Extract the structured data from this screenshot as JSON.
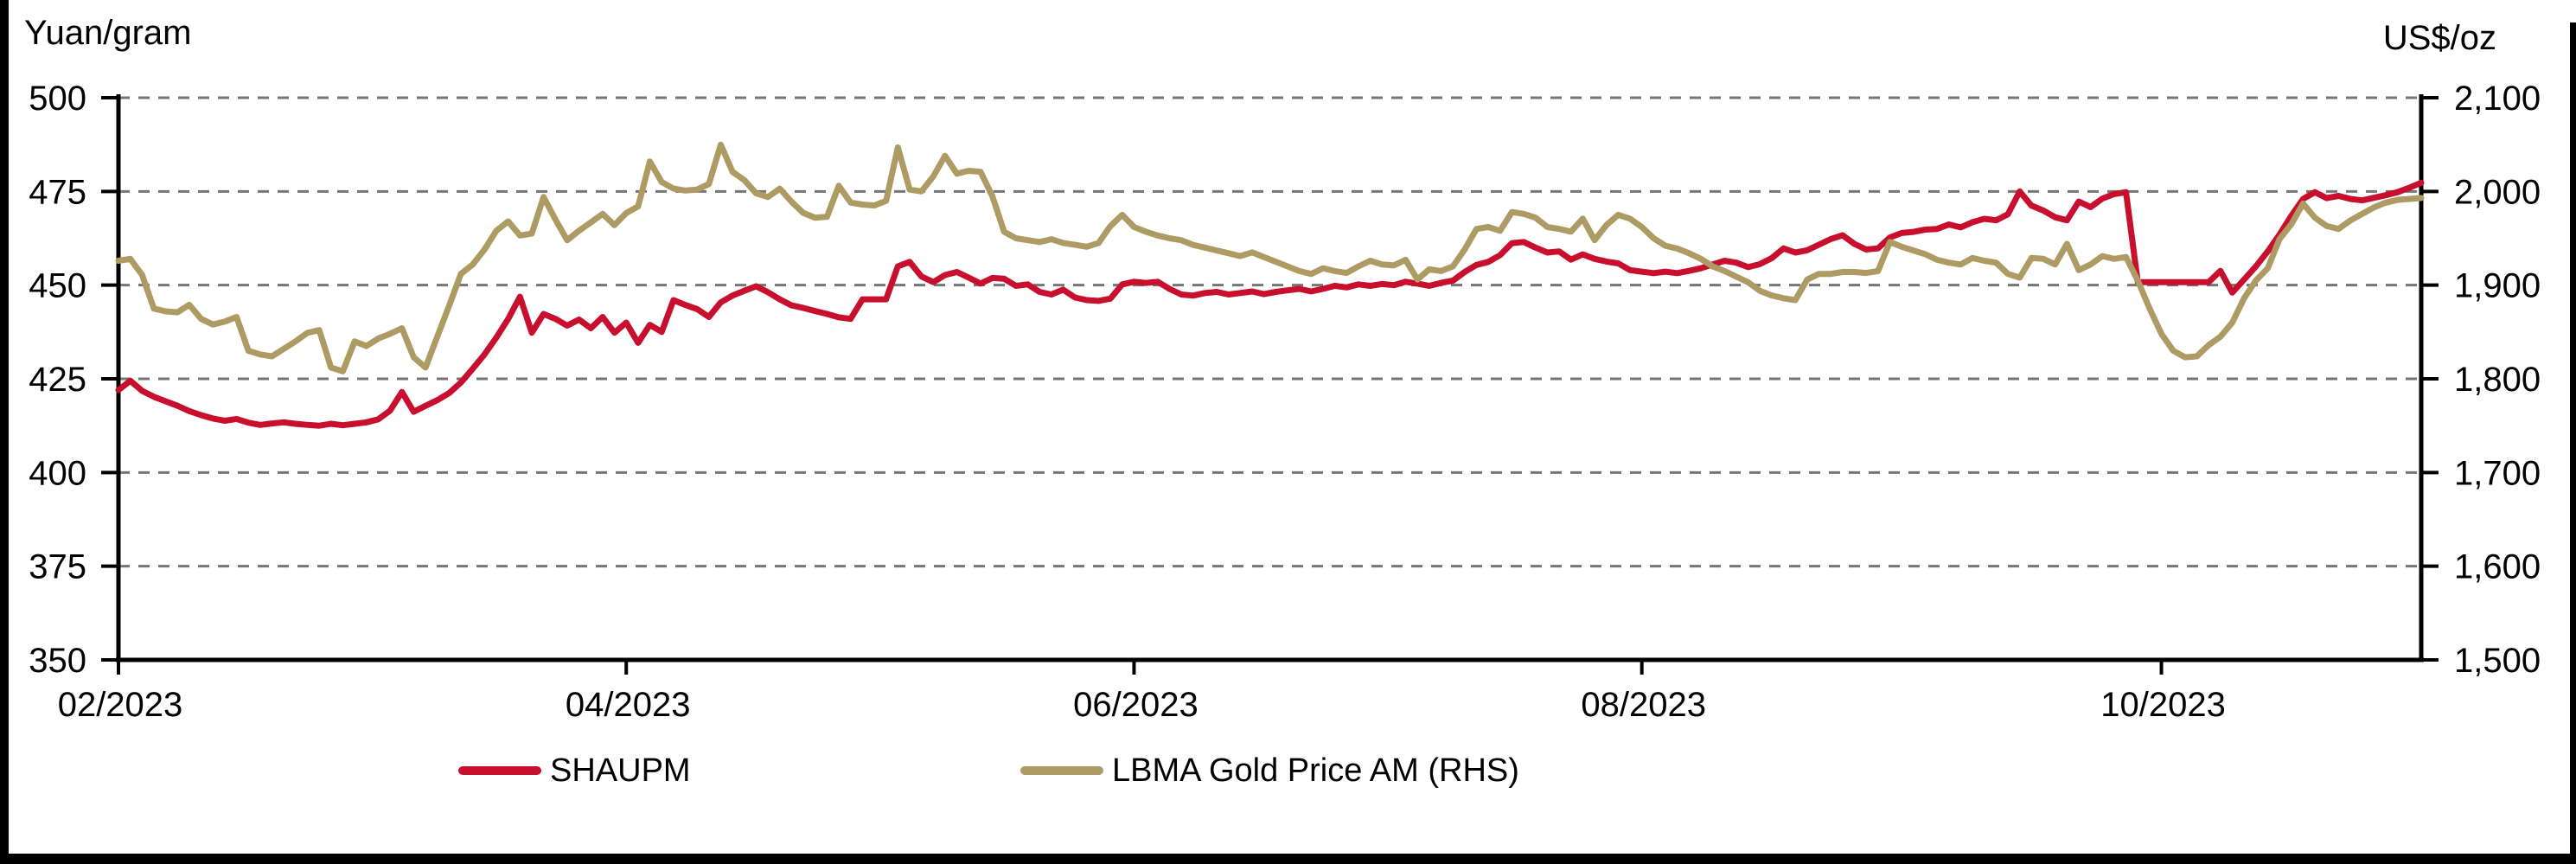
{
  "chart_data": {
    "type": "line",
    "title": "",
    "grid": "horizontal-dashed",
    "grid_color": "#757575",
    "axis_color": "#000000",
    "legend_position": "bottom",
    "x_axis": {
      "tick_labels": [
        "02/2023",
        "04/2023",
        "06/2023",
        "08/2023",
        "10/2023"
      ],
      "tick_series_indices": [
        0,
        43,
        86,
        129,
        173
      ]
    },
    "y_axis_left": {
      "title": "Yuan/gram",
      "min": 350,
      "max": 500,
      "tick_values": [
        500,
        475,
        450,
        425,
        400,
        375,
        350
      ],
      "tick_labels": [
        "500",
        "475",
        "450",
        "425",
        "400",
        "375",
        "350"
      ]
    },
    "y_axis_right": {
      "title": "US$/oz",
      "min": 1500,
      "max": 2100,
      "tick_values": [
        2100,
        2000,
        1900,
        1800,
        1700,
        1600,
        1500
      ],
      "tick_labels": [
        "2,100",
        "2,000",
        "1,900",
        "1,800",
        "1,700",
        "1,600",
        "1,500"
      ]
    },
    "series": [
      {
        "name": "SHAUPM",
        "axis": "left",
        "color": "#C8102E",
        "values": [
          422.0,
          424.5,
          421.8,
          420.2,
          419.0,
          417.8,
          416.4,
          415.3,
          414.4,
          413.8,
          414.3,
          413.3,
          412.7,
          413.1,
          413.4,
          413.0,
          412.7,
          412.5,
          413.0,
          412.6,
          413.0,
          413.4,
          414.2,
          416.5,
          421.5,
          416.2,
          417.8,
          419.3,
          421.2,
          424.0,
          427.7,
          431.5,
          436.0,
          441.0,
          446.9,
          437.3,
          442.3,
          441.0,
          439.2,
          440.8,
          438.5,
          441.5,
          437.3,
          440.0,
          434.6,
          439.4,
          437.5,
          446.0,
          444.7,
          443.6,
          441.5,
          445.4,
          447.2,
          448.5,
          449.7,
          448.1,
          446.2,
          444.6,
          443.9,
          443.1,
          442.3,
          441.4,
          441.0,
          446.2,
          446.2,
          446.2,
          455.0,
          456.2,
          452.3,
          450.8,
          452.7,
          453.5,
          452.0,
          450.4,
          451.9,
          451.7,
          449.8,
          450.2,
          448.2,
          447.5,
          448.8,
          446.7,
          446.0,
          445.8,
          446.4,
          450.2,
          450.9,
          450.6,
          450.9,
          449.0,
          447.5,
          447.2,
          447.9,
          448.2,
          447.5,
          447.9,
          448.3,
          447.6,
          448.2,
          448.6,
          449.0,
          448.3,
          449.0,
          449.8,
          449.4,
          450.2,
          449.8,
          450.3,
          450.0,
          450.9,
          450.4,
          449.8,
          450.6,
          451.2,
          453.5,
          455.4,
          456.2,
          458.0,
          461.2,
          461.5,
          460.0,
          458.7,
          459.0,
          456.8,
          458.2,
          457.0,
          456.3,
          455.8,
          454.0,
          453.6,
          453.2,
          453.6,
          453.2,
          453.8,
          454.5,
          455.5,
          456.5,
          456.0,
          454.8,
          455.6,
          457.2,
          459.8,
          458.7,
          459.3,
          460.8,
          462.3,
          463.3,
          461.0,
          459.5,
          459.8,
          462.7,
          463.9,
          464.2,
          464.8,
          465.0,
          466.2,
          465.4,
          466.8,
          467.7,
          467.3,
          468.9,
          475.0,
          471.2,
          469.9,
          468.1,
          467.3,
          472.3,
          470.8,
          473.1,
          474.3,
          474.8,
          450.8,
          450.8,
          450.8,
          450.8,
          450.8,
          450.8,
          450.8,
          453.8,
          448.0,
          451.5,
          455.0,
          459.0,
          463.5,
          468.5,
          473.0,
          474.8,
          473.2,
          473.8,
          473.0,
          472.6,
          473.3,
          474.0,
          474.8,
          476.0,
          477.3
        ]
      },
      {
        "name": "LBMA Gold Price AM (RHS)",
        "axis": "right",
        "color": "#AE9B64",
        "values": [
          1926,
          1928,
          1911,
          1875,
          1872,
          1871,
          1879,
          1864,
          1858,
          1861,
          1866,
          1830,
          1826,
          1824,
          1832,
          1840,
          1849,
          1852,
          1812,
          1808,
          1840,
          1835,
          1843,
          1848,
          1854,
          1823,
          1812,
          1845,
          1878,
          1912,
          1922,
          1938,
          1958,
          1968,
          1953,
          1955,
          1994,
          1970,
          1948,
          1958,
          1967,
          1976,
          1964,
          1977,
          1984,
          2032,
          2010,
          2003,
          2001,
          2002,
          2008,
          2050,
          2021,
          2012,
          1998,
          1994,
          2003,
          1989,
          1977,
          1972,
          1973,
          2006,
          1988,
          1986,
          1985,
          1990,
          2047,
          2002,
          2000,
          2016,
          2038,
          2019,
          2022,
          2021,
          1995,
          1957,
          1950,
          1948,
          1946,
          1949,
          1945,
          1943,
          1941,
          1945,
          1963,
          1975,
          1962,
          1957,
          1953,
          1950,
          1948,
          1943,
          1940,
          1937,
          1934,
          1931,
          1935,
          1930,
          1925,
          1920,
          1915,
          1912,
          1918,
          1915,
          1913,
          1920,
          1926,
          1922,
          1921,
          1927,
          1906,
          1917,
          1915,
          1920,
          1938,
          1960,
          1962,
          1958,
          1978,
          1976,
          1972,
          1962,
          1960,
          1957,
          1971,
          1948,
          1964,
          1975,
          1971,
          1962,
          1950,
          1942,
          1939,
          1934,
          1928,
          1920,
          1915,
          1909,
          1903,
          1894,
          1889,
          1886,
          1884,
          1906,
          1912,
          1912,
          1914,
          1914,
          1913,
          1915,
          1946,
          1941,
          1937,
          1933,
          1927,
          1924,
          1922,
          1929,
          1926,
          1924,
          1912,
          1908,
          1929,
          1928,
          1922,
          1944,
          1916,
          1922,
          1931,
          1928,
          1930,
          1905,
          1875,
          1848,
          1830,
          1823,
          1824,
          1836,
          1845,
          1860,
          1886,
          1905,
          1918,
          1949,
          1965,
          1987,
          1972,
          1963,
          1960,
          1969,
          1976,
          1983,
          1988,
          1991,
          1992,
          1993
        ]
      }
    ]
  }
}
